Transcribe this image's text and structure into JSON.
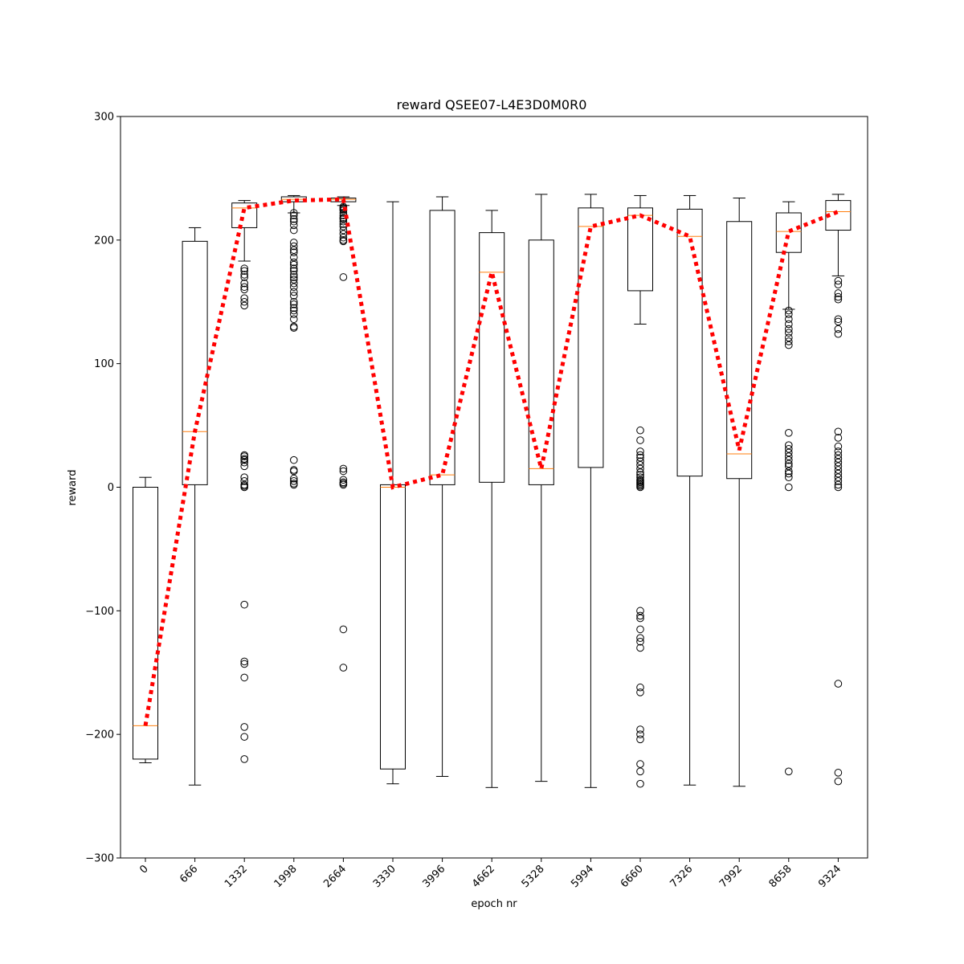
{
  "chart_data": {
    "type": "box",
    "title": "reward QSEE07-L4E3D0M0R0",
    "xlabel": "epoch nr",
    "ylabel": "reward",
    "ylim": [
      -300,
      300
    ],
    "yticks": [
      -300,
      -200,
      -100,
      0,
      100,
      200,
      300
    ],
    "grid": false,
    "colors": {
      "box": "#000000",
      "median": "#ff7f0e",
      "mean_line": "#ff0000"
    },
    "categories": [
      "0",
      "666",
      "1332",
      "1998",
      "2664",
      "3330",
      "3996",
      "4662",
      "5328",
      "5994",
      "6660",
      "7326",
      "7992",
      "8658",
      "9324"
    ],
    "boxes": [
      {
        "whislo": -223,
        "q1": -220,
        "med": -193,
        "q3": 0,
        "whishi": 8,
        "fliers": []
      },
      {
        "whislo": -241,
        "q1": 2,
        "med": 45,
        "q3": 199,
        "whishi": 210,
        "fliers": []
      },
      {
        "whislo": 183,
        "q1": 210,
        "med": 226,
        "q3": 230,
        "whishi": 232,
        "fliers": [
          177,
          175,
          172,
          170,
          165,
          162,
          160,
          153,
          150,
          147,
          26,
          25,
          23,
          22,
          20,
          17,
          8,
          5,
          2,
          1,
          0,
          -95,
          -141,
          -143,
          -154,
          -194,
          -202,
          -220
        ]
      },
      {
        "whislo": 222,
        "q1": 231,
        "med": 233,
        "q3": 235,
        "whishi": 236,
        "fliers": [
          222,
          220,
          217,
          215,
          212,
          208,
          198,
          195,
          192,
          190,
          186,
          182,
          180,
          177,
          175,
          172,
          170,
          168,
          165,
          162,
          158,
          155,
          150,
          148,
          145,
          143,
          140,
          136,
          130,
          129,
          22,
          14,
          13,
          7,
          5,
          3,
          2
        ]
      },
      {
        "whislo": 228,
        "q1": 231,
        "med": 233,
        "q3": 234,
        "whishi": 235,
        "fliers": [
          227,
          226,
          225,
          224,
          222,
          220,
          218,
          217,
          215,
          213,
          211,
          208,
          205,
          202,
          200,
          199,
          170,
          15,
          13,
          6,
          4,
          3,
          2,
          -115,
          -146
        ]
      },
      {
        "whislo": -240,
        "q1": -228,
        "med": 0,
        "q3": 2,
        "whishi": 231,
        "fliers": []
      },
      {
        "whislo": -234,
        "q1": 2,
        "med": 10,
        "q3": 224,
        "whishi": 235,
        "fliers": []
      },
      {
        "whislo": -243,
        "q1": 4,
        "med": 174,
        "q3": 206,
        "whishi": 224,
        "fliers": []
      },
      {
        "whislo": -238,
        "q1": 2,
        "med": 15,
        "q3": 200,
        "whishi": 237,
        "fliers": []
      },
      {
        "whislo": -243,
        "q1": 16,
        "med": 211,
        "q3": 226,
        "whishi": 237,
        "fliers": []
      },
      {
        "whislo": 132,
        "q1": 159,
        "med": 220,
        "q3": 226,
        "whishi": 236,
        "fliers": [
          46,
          38,
          29,
          26,
          24,
          21,
          18,
          15,
          12,
          10,
          8,
          6,
          5,
          4,
          3,
          2,
          1,
          0,
          -100,
          -104,
          -106,
          -115,
          -122,
          -125,
          -130,
          -162,
          -166,
          -196,
          -200,
          -204,
          -224,
          -230,
          -240
        ]
      },
      {
        "whislo": -241,
        "q1": 9,
        "med": 203,
        "q3": 225,
        "whishi": 236,
        "fliers": []
      },
      {
        "whislo": -242,
        "q1": 7,
        "med": 27,
        "q3": 215,
        "whishi": 234,
        "fliers": []
      },
      {
        "whislo": 144,
        "q1": 190,
        "med": 207,
        "q3": 222,
        "whishi": 231,
        "fliers": [
          143,
          140,
          136,
          132,
          128,
          125,
          121,
          118,
          115,
          44,
          34,
          31,
          28,
          25,
          22,
          19,
          17,
          13,
          11,
          8,
          0,
          -230
        ]
      },
      {
        "whislo": 171,
        "q1": 208,
        "med": 223,
        "q3": 232,
        "whishi": 237,
        "fliers": [
          167,
          164,
          157,
          154,
          152,
          136,
          134,
          128,
          124,
          45,
          40,
          33,
          29,
          26,
          23,
          20,
          17,
          14,
          11,
          8,
          5,
          2,
          0,
          -159,
          -231,
          -238
        ]
      }
    ],
    "mean_line": {
      "style": "dotted",
      "values": [
        -193,
        45,
        226,
        232,
        233,
        0,
        10,
        174,
        15,
        211,
        220,
        203,
        30,
        207,
        223
      ]
    }
  }
}
